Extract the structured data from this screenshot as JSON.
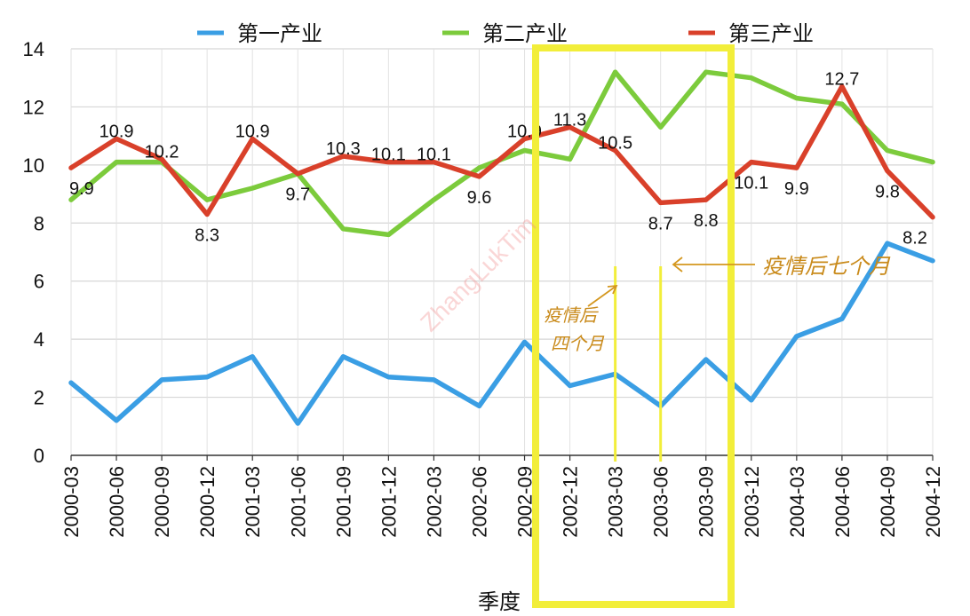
{
  "chart_data": {
    "type": "line",
    "xlabel": "季度",
    "ylabel": "",
    "ylim": [
      0,
      14
    ],
    "y_ticks": [
      0,
      2,
      4,
      6,
      8,
      10,
      12,
      14
    ],
    "grid": true,
    "legend_position": "top",
    "categories": [
      "2000-03",
      "2000-06",
      "2000-09",
      "2000-12",
      "2001-03",
      "2001-06",
      "2001-09",
      "2001-12",
      "2002-03",
      "2002-06",
      "2002-09",
      "2002-12",
      "2003-03",
      "2003-06",
      "2003-09",
      "2003-12",
      "2004-03",
      "2004-06",
      "2004-09",
      "2004-12"
    ],
    "series": [
      {
        "name": "第一产业",
        "color": "#3a9ee4",
        "values": [
          2.5,
          1.2,
          2.6,
          2.7,
          3.4,
          1.1,
          3.4,
          2.7,
          2.6,
          1.7,
          3.9,
          2.4,
          2.8,
          1.7,
          3.3,
          1.9,
          4.1,
          4.7,
          7.3,
          6.7
        ]
      },
      {
        "name": "第二产业",
        "color": "#7ccb3c",
        "values": [
          8.8,
          10.1,
          10.1,
          8.8,
          9.2,
          9.7,
          7.8,
          7.6,
          8.8,
          9.9,
          10.5,
          10.2,
          13.2,
          11.3,
          13.2,
          13.0,
          12.3,
          12.1,
          10.5,
          10.1
        ]
      },
      {
        "name": "第三产业",
        "color": "#d9402a",
        "values": [
          9.9,
          10.9,
          10.2,
          8.3,
          10.9,
          9.7,
          10.3,
          10.1,
          10.1,
          9.6,
          10.9,
          11.3,
          10.5,
          8.7,
          8.8,
          10.1,
          9.9,
          12.7,
          9.8,
          8.2
        ],
        "data_labels": [
          "9.9",
          "10.9",
          "10.2",
          "8.3",
          "10.9",
          "9.7",
          "10.3",
          "10.1",
          "10.1",
          "9.6",
          "10.9",
          "11.3",
          "10.5",
          "8.7",
          "8.8",
          "10.1",
          "9.9",
          "12.7",
          "9.8",
          "8.2"
        ]
      }
    ],
    "annotations": [
      {
        "text_line1": "疫情后",
        "text_line2": "四个月",
        "points_to": "2003-03"
      },
      {
        "text": "疫情后七个月",
        "points_to": "2003-06"
      }
    ],
    "highlight": {
      "from": "2002-12",
      "to": "2003-09",
      "color": "#f2ee3a"
    },
    "watermark": "ZhangLukTim"
  }
}
